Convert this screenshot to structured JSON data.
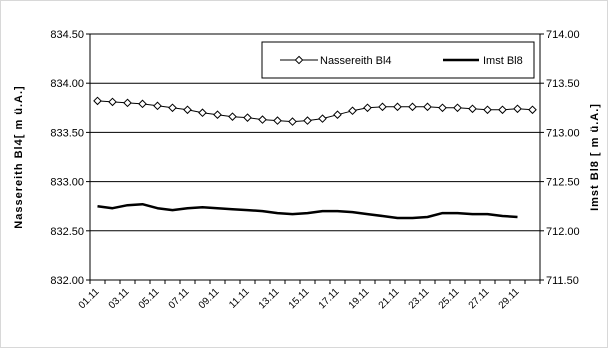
{
  "chart_data": {
    "type": "line",
    "x": [
      "01.11",
      "02.11",
      "03.11",
      "04.11",
      "05.11",
      "06.11",
      "07.11",
      "08.11",
      "09.11",
      "10.11",
      "11.11",
      "12.11",
      "13.11",
      "14.11",
      "15.11",
      "16.11",
      "17.11",
      "18.11",
      "19.11",
      "20.11",
      "21.11",
      "22.11",
      "23.11",
      "24.11",
      "25.11",
      "26.11",
      "27.11",
      "28.11",
      "29.11",
      "30.11"
    ],
    "x_tick_labels": [
      "01.11",
      "03.11",
      "05.11",
      "07.11",
      "09.11",
      "11.11",
      "13.11",
      "15.11",
      "17.11",
      "19.11",
      "21.11",
      "23.11",
      "25.11",
      "27.11",
      "29.11"
    ],
    "ylabel": "Nassereith Bl4[ m ü.A.]",
    "y2label": "Imst Bl8 [ m ü.A.]",
    "ylim": [
      832.0,
      834.5
    ],
    "y2lim": [
      711.5,
      714.0
    ],
    "yticks": [
      "834.50",
      "834.00",
      "833.50",
      "833.00",
      "832.50",
      "832.00"
    ],
    "y2ticks": [
      "714.00",
      "713.50",
      "713.00",
      "712.50",
      "712.00",
      "711.50"
    ],
    "grid": "horizontal",
    "legend_position": "top-right",
    "series": [
      {
        "name": "Nassereith  Bl4",
        "axis": "left",
        "marker": "diamond",
        "color": "#000000",
        "values": [
          833.82,
          833.81,
          833.8,
          833.79,
          833.77,
          833.75,
          833.73,
          833.7,
          833.68,
          833.66,
          833.65,
          833.63,
          833.62,
          833.61,
          833.62,
          833.64,
          833.68,
          833.72,
          833.75,
          833.76,
          833.76,
          833.76,
          833.76,
          833.75,
          833.75,
          833.74,
          833.73,
          833.73,
          833.74,
          833.73
        ]
      },
      {
        "name": "Imst Bl8",
        "axis": "right",
        "marker": "none",
        "color": "#000000",
        "values": [
          712.25,
          712.23,
          712.26,
          712.27,
          712.23,
          712.21,
          712.23,
          712.24,
          712.23,
          712.22,
          712.21,
          712.2,
          712.18,
          712.17,
          712.18,
          712.2,
          712.2,
          712.19,
          712.17,
          712.15,
          712.13,
          712.13,
          712.14,
          712.18,
          712.18,
          712.17,
          712.17,
          712.15,
          712.14,
          null
        ]
      }
    ]
  }
}
